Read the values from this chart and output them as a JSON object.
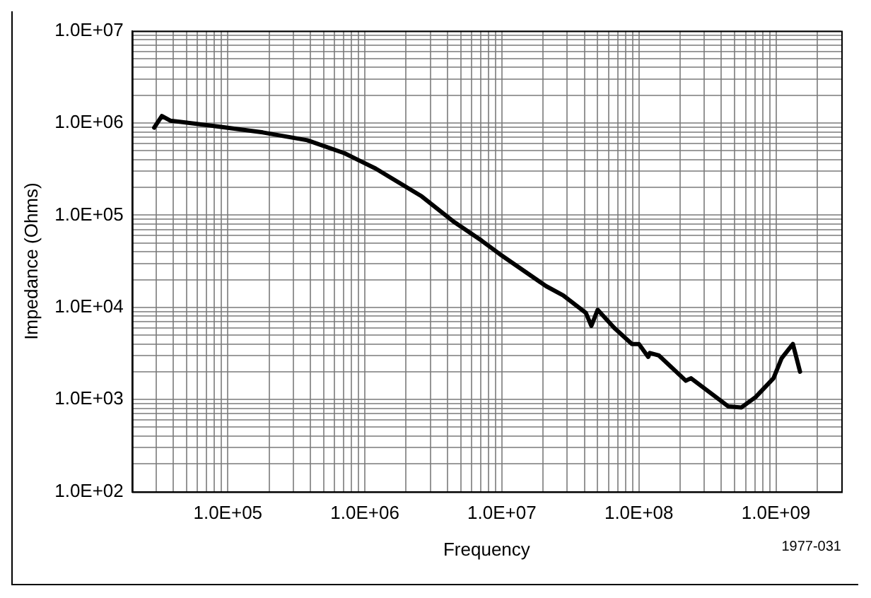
{
  "chart_data": {
    "type": "line",
    "xlabel": "Frequency",
    "ylabel": "Impedance (Ohms)",
    "annotations": [
      "1977-031"
    ],
    "log": "xy",
    "grid": true,
    "legend": false,
    "marker": "none",
    "line_style": "solid",
    "xlim": [
      20000.0,
      3000000000.0
    ],
    "ylim": [
      100,
      10000000.0
    ],
    "xticks": [
      {
        "value": 30000.0,
        "label": null
      },
      {
        "value": 40000.0,
        "label": null
      },
      {
        "value": 50000.0,
        "label": null
      },
      {
        "value": 60000.0,
        "label": null
      },
      {
        "value": 70000.0,
        "label": null
      },
      {
        "value": 80000.0,
        "label": null
      },
      {
        "value": 90000.0,
        "label": null
      },
      {
        "value": 100000.0,
        "label": "1.0E+05"
      },
      {
        "value": 200000.0,
        "label": null
      },
      {
        "value": 300000.0,
        "label": null
      },
      {
        "value": 400000.0,
        "label": null
      },
      {
        "value": 500000.0,
        "label": null
      },
      {
        "value": 600000.0,
        "label": null
      },
      {
        "value": 700000.0,
        "label": null
      },
      {
        "value": 800000.0,
        "label": null
      },
      {
        "value": 900000.0,
        "label": null
      },
      {
        "value": 1000000.0,
        "label": "1.0E+06"
      },
      {
        "value": 2000000.0,
        "label": null
      },
      {
        "value": 3000000.0,
        "label": null
      },
      {
        "value": 4000000.0,
        "label": null
      },
      {
        "value": 5000000.0,
        "label": null
      },
      {
        "value": 6000000.0,
        "label": null
      },
      {
        "value": 7000000.0,
        "label": null
      },
      {
        "value": 8000000.0,
        "label": null
      },
      {
        "value": 9000000.0,
        "label": null
      },
      {
        "value": 10000000.0,
        "label": "1.0E+07"
      },
      {
        "value": 20000000.0,
        "label": null
      },
      {
        "value": 30000000.0,
        "label": null
      },
      {
        "value": 40000000.0,
        "label": null
      },
      {
        "value": 50000000.0,
        "label": null
      },
      {
        "value": 60000000.0,
        "label": null
      },
      {
        "value": 70000000.0,
        "label": null
      },
      {
        "value": 80000000.0,
        "label": null
      },
      {
        "value": 90000000.0,
        "label": null
      },
      {
        "value": 100000000.0,
        "label": "1.0E+08"
      },
      {
        "value": 200000000.0,
        "label": null
      },
      {
        "value": 300000000.0,
        "label": null
      },
      {
        "value": 400000000.0,
        "label": null
      },
      {
        "value": 500000000.0,
        "label": null
      },
      {
        "value": 600000000.0,
        "label": null
      },
      {
        "value": 700000000.0,
        "label": null
      },
      {
        "value": 800000000.0,
        "label": null
      },
      {
        "value": 900000000.0,
        "label": null
      },
      {
        "value": 1000000000.0,
        "label": "1.0E+09"
      },
      {
        "value": 2000000000.0,
        "label": null
      }
    ],
    "yticks": [
      {
        "value": 100,
        "label": "1.0E+02"
      },
      {
        "value": 200,
        "label": null
      },
      {
        "value": 300,
        "label": null
      },
      {
        "value": 400,
        "label": null
      },
      {
        "value": 500,
        "label": null
      },
      {
        "value": 600,
        "label": null
      },
      {
        "value": 700,
        "label": null
      },
      {
        "value": 800,
        "label": null
      },
      {
        "value": 900,
        "label": null
      },
      {
        "value": 1000,
        "label": "1.0E+03"
      },
      {
        "value": 2000,
        "label": null
      },
      {
        "value": 3000,
        "label": null
      },
      {
        "value": 4000,
        "label": null
      },
      {
        "value": 5000,
        "label": null
      },
      {
        "value": 6000,
        "label": null
      },
      {
        "value": 7000,
        "label": null
      },
      {
        "value": 8000,
        "label": null
      },
      {
        "value": 9000,
        "label": null
      },
      {
        "value": 10000.0,
        "label": "1.0E+04"
      },
      {
        "value": 20000.0,
        "label": null
      },
      {
        "value": 30000.0,
        "label": null
      },
      {
        "value": 40000.0,
        "label": null
      },
      {
        "value": 50000.0,
        "label": null
      },
      {
        "value": 60000.0,
        "label": null
      },
      {
        "value": 70000.0,
        "label": null
      },
      {
        "value": 80000.0,
        "label": null
      },
      {
        "value": 90000.0,
        "label": null
      },
      {
        "value": 100000.0,
        "label": "1.0E+05"
      },
      {
        "value": 200000.0,
        "label": null
      },
      {
        "value": 300000.0,
        "label": null
      },
      {
        "value": 400000.0,
        "label": null
      },
      {
        "value": 500000.0,
        "label": null
      },
      {
        "value": 600000.0,
        "label": null
      },
      {
        "value": 700000.0,
        "label": null
      },
      {
        "value": 800000.0,
        "label": null
      },
      {
        "value": 900000.0,
        "label": null
      },
      {
        "value": 1000000.0,
        "label": "1.0E+06"
      },
      {
        "value": 2000000.0,
        "label": null
      },
      {
        "value": 3000000.0,
        "label": null
      },
      {
        "value": 4000000.0,
        "label": null
      },
      {
        "value": 5000000.0,
        "label": null
      },
      {
        "value": 6000000.0,
        "label": null
      },
      {
        "value": 7000000.0,
        "label": null
      },
      {
        "value": 8000000.0,
        "label": null
      },
      {
        "value": 9000000.0,
        "label": null
      },
      {
        "value": 10000000.0,
        "label": "1.0E+07"
      }
    ],
    "series": [
      {
        "color": "#000000",
        "x": [
          29000.0,
          33000.0,
          38000.0,
          83000.0,
          180000.0,
          380000.0,
          710000.0,
          1200000.0,
          2600000.0,
          4500000.0,
          7100000.0,
          9600000.0,
          21000000.0,
          28000000.0,
          41000000.0,
          45000000.0,
          50000000.0,
          66000000.0,
          89000000.0,
          100000000.0,
          117000000.0,
          120000000.0,
          140000000.0,
          220000000.0,
          240000000.0,
          450000000.0,
          560000000.0,
          710000000.0,
          960000000.0,
          1100000000.0,
          1330000000.0,
          1500000000.0
        ],
        "values": [
          890000.0,
          1190000.0,
          1060000.0,
          920000.0,
          790000.0,
          650000.0,
          470000.0,
          320000.0,
          160000.0,
          84000.0,
          53000.0,
          38000.0,
          17000.0,
          13500.0,
          8700.0,
          6300.0,
          9400.0,
          6000.0,
          4000.0,
          4000.0,
          2900.0,
          3200.0,
          3000.0,
          1600.0,
          1700.0,
          840,
          820,
          1060,
          1700,
          2800,
          4000,
          2000
        ]
      }
    ]
  }
}
